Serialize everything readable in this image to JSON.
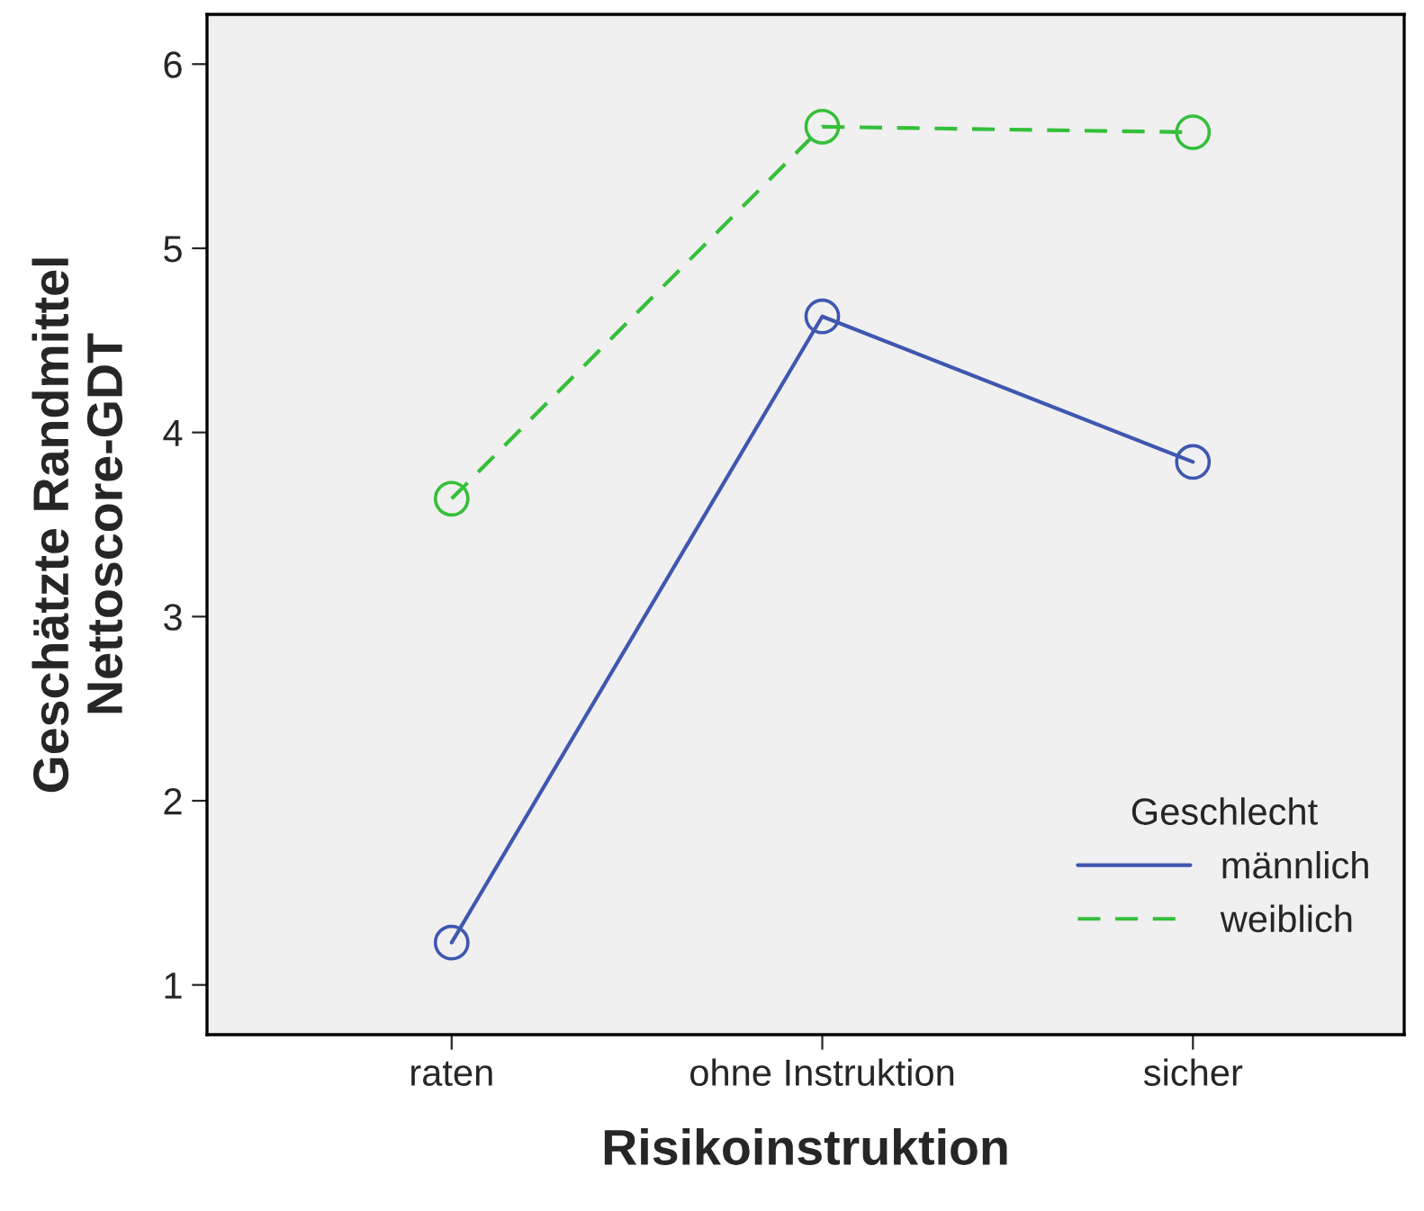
{
  "chart_data": {
    "type": "line",
    "xlabel": "Risikoinstruktion",
    "ylabel": "Geschätzte Randmittel\nNettoscore-GDT",
    "categories": [
      "raten",
      "ohne Instruktion",
      "sicher"
    ],
    "series": [
      {
        "name": "männlich",
        "color": "#3f57b0",
        "values": [
          1.23,
          4.63,
          3.84
        ],
        "line_style": "solid"
      },
      {
        "name": "weiblich",
        "color": "#35bf3a",
        "values": [
          3.64,
          5.66,
          5.63
        ],
        "line_style": "dashed"
      }
    ],
    "legend_title": "Geschlecht",
    "legend": "bottom right",
    "marker": "circle",
    "grid": false,
    "ylim": [
      0.73,
      6.27
    ],
    "yticks": [
      1,
      2,
      3,
      4,
      5,
      6
    ]
  }
}
